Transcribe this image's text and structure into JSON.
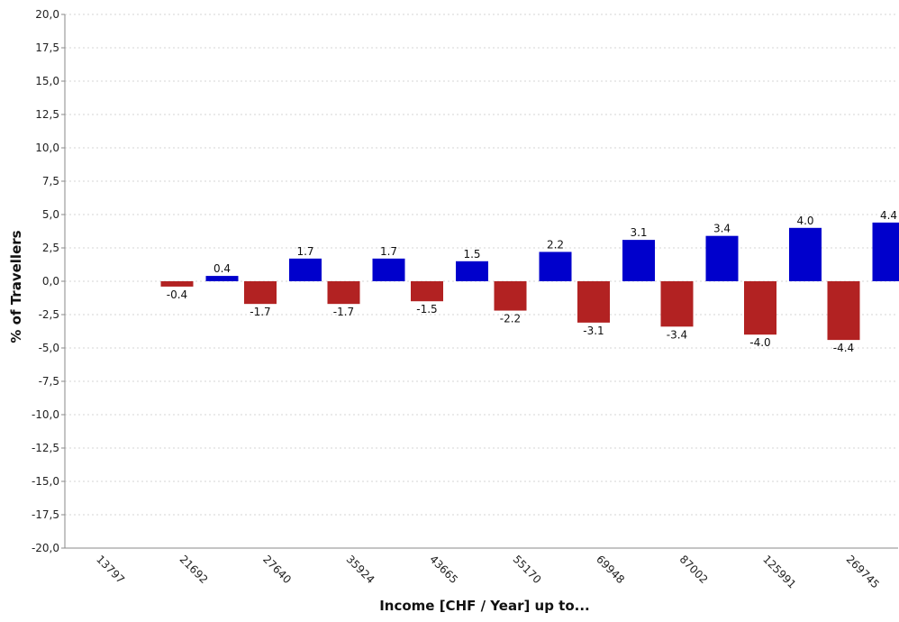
{
  "chart_data": {
    "type": "bar",
    "title": "",
    "xlabel": "Income [CHF / Year] up to...",
    "ylabel": "% of Travellers",
    "ylim": [
      -20,
      20
    ],
    "ytick_step": 2.5,
    "categories": [
      "13797",
      "21692",
      "27640",
      "35924",
      "43665",
      "55170",
      "69948",
      "87002",
      "125991",
      "269745"
    ],
    "series": [
      {
        "color": "#b22222",
        "values": [
          0,
          -0.4,
          -1.7,
          -1.7,
          -1.5,
          -2.2,
          -3.1,
          -3.4,
          -4.0,
          -4.4
        ]
      },
      {
        "color": "#0000cc",
        "values": [
          0,
          0.4,
          1.7,
          1.7,
          1.5,
          2.2,
          3.1,
          3.4,
          4.0,
          4.4
        ]
      }
    ],
    "value_labels": [
      [
        "",
        "-0.4",
        "-1.7",
        "-1.7",
        "-1.5",
        "-2.2",
        "-3.1",
        "-3.4",
        "-4.0",
        "-4.4"
      ],
      [
        "",
        "0.4",
        "1.7",
        "1.7",
        "1.5",
        "2.2",
        "3.1",
        "3.4",
        "4.0",
        "4.4"
      ]
    ],
    "grid": true,
    "legend": "none"
  }
}
